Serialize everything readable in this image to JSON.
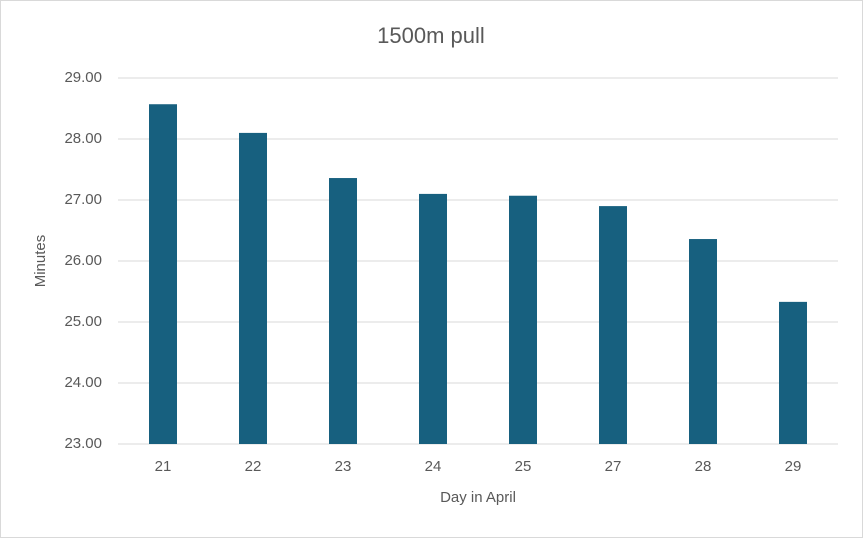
{
  "chart_data": {
    "type": "bar",
    "title": "1500m pull",
    "x_label": "Day in April",
    "y_label": "Minutes",
    "categories": [
      "21",
      "22",
      "23",
      "24",
      "25",
      "27",
      "28",
      "29"
    ],
    "values": [
      28.57,
      28.1,
      27.36,
      27.1,
      27.07,
      26.9,
      26.36,
      25.33
    ],
    "color": "#17607f",
    "ylim": [
      23,
      29
    ],
    "yticks": [
      {
        "value": 23,
        "label": "23.00"
      },
      {
        "value": 24,
        "label": "24.00"
      },
      {
        "value": 25,
        "label": "25.00"
      },
      {
        "value": 26,
        "label": "26.00"
      },
      {
        "value": 27,
        "label": "27.00"
      },
      {
        "value": 28,
        "label": "28.00"
      },
      {
        "value": 29,
        "label": "29.00"
      }
    ],
    "grid": true
  }
}
